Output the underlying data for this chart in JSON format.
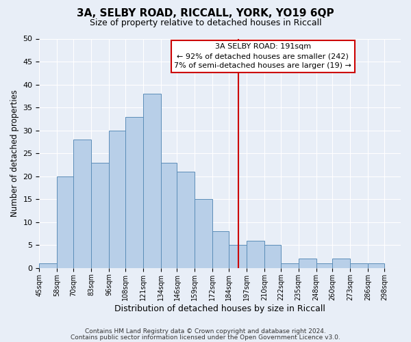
{
  "title": "3A, SELBY ROAD, RICCALL, YORK, YO19 6QP",
  "subtitle": "Size of property relative to detached houses in Riccall",
  "xlabel": "Distribution of detached houses by size in Riccall",
  "ylabel": "Number of detached properties",
  "bin_labels": [
    "45sqm",
    "58sqm",
    "70sqm",
    "83sqm",
    "96sqm",
    "108sqm",
    "121sqm",
    "134sqm",
    "146sqm",
    "159sqm",
    "172sqm",
    "184sqm",
    "197sqm",
    "210sqm",
    "222sqm",
    "235sqm",
    "248sqm",
    "260sqm",
    "273sqm",
    "286sqm",
    "298sqm"
  ],
  "bin_edges": [
    45,
    58,
    70,
    83,
    96,
    108,
    121,
    134,
    146,
    159,
    172,
    184,
    197,
    210,
    222,
    235,
    248,
    260,
    273,
    286,
    298
  ],
  "counts": [
    1,
    20,
    28,
    23,
    30,
    33,
    38,
    23,
    21,
    15,
    8,
    5,
    6,
    5,
    1,
    2,
    1,
    2,
    1,
    1
  ],
  "bar_color": "#b8cfe8",
  "bar_edge_color": "#5b8db8",
  "vline_x": 191,
  "vline_color": "#cc0000",
  "annotation_title": "3A SELBY ROAD: 191sqm",
  "annotation_line1": "← 92% of detached houses are smaller (242)",
  "annotation_line2": "7% of semi-detached houses are larger (19) →",
  "annotation_box_color": "#cc0000",
  "ylim": [
    0,
    50
  ],
  "yticks": [
    0,
    5,
    10,
    15,
    20,
    25,
    30,
    35,
    40,
    45,
    50
  ],
  "footer1": "Contains HM Land Registry data © Crown copyright and database right 2024.",
  "footer2": "Contains public sector information licensed under the Open Government Licence v3.0.",
  "bg_color": "#e8eef7",
  "plot_bg_color": "#e8eef7",
  "grid_color": "#ffffff",
  "title_fontsize": 11,
  "subtitle_fontsize": 9,
  "footer_fontsize": 6.5
}
